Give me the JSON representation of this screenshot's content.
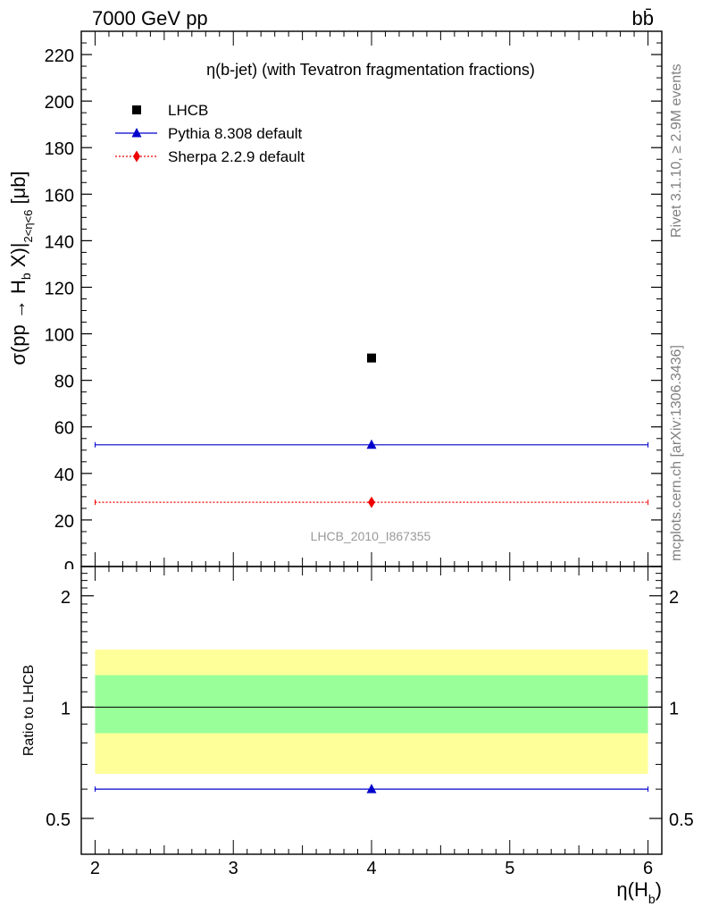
{
  "header": {
    "energy_label": "7000 GeV pp",
    "process_label": "bb̄"
  },
  "side_labels": {
    "rivet": "Rivet 3.1.10, ≥ 2.9M events",
    "mcplots": "mcplots.cern.ch [arXiv:1306.3436]"
  },
  "chart_data": [
    {
      "type": "scatter",
      "title": "η(b-jet) (with Tevatron fragmentation fractions)",
      "ylabel": "σ(pp → H_b X)|_{2<η<6} [μb]",
      "xlim": [
        1.9,
        6.1
      ],
      "ylim": [
        0,
        230
      ],
      "yticks": [
        0,
        20,
        40,
        60,
        80,
        100,
        120,
        140,
        160,
        180,
        200,
        220
      ],
      "watermark": "LHCB_2010_I867355",
      "legend_position": "top-left",
      "series": [
        {
          "name": "LHCB",
          "marker": "square",
          "color": "#000000",
          "line": "none",
          "points": [
            {
              "x": 4,
              "y": 89.6,
              "xlow": 2,
              "xhigh": 6
            }
          ]
        },
        {
          "name": "Pythia 8.308 default",
          "marker": "triangle",
          "color": "#0000cc",
          "line": "solid",
          "points": [
            {
              "x": 4,
              "y": 52.3,
              "xlow": 2,
              "xhigh": 6
            }
          ]
        },
        {
          "name": "Sherpa 2.2.9 default",
          "marker": "diamond",
          "color": "#ee0000",
          "line": "dotted",
          "points": [
            {
              "x": 4,
              "y": 27.6,
              "xlow": 2,
              "xhigh": 6
            }
          ]
        }
      ]
    },
    {
      "type": "scatter",
      "xlabel": "η(H_b)",
      "ylabel": "Ratio to LHCB",
      "xlim": [
        1.9,
        6.1
      ],
      "xticks": [
        2,
        3,
        4,
        5,
        6
      ],
      "ylim": [
        0.4,
        2.4
      ],
      "yscale": "log",
      "yticks": [
        0.5,
        1,
        2
      ],
      "reference_line": 1,
      "bands": [
        {
          "name": "total uncertainty",
          "color": "#ffff99",
          "low": 0.66,
          "high": 1.43
        },
        {
          "name": "stat uncertainty",
          "color": "#99ff99",
          "low": 0.85,
          "high": 1.22
        }
      ],
      "series": [
        {
          "name": "Pythia 8.308 default",
          "marker": "triangle",
          "color": "#0000cc",
          "points": [
            {
              "x": 4,
              "y": 0.6,
              "xlow": 2,
              "xhigh": 6
            }
          ]
        }
      ]
    }
  ]
}
